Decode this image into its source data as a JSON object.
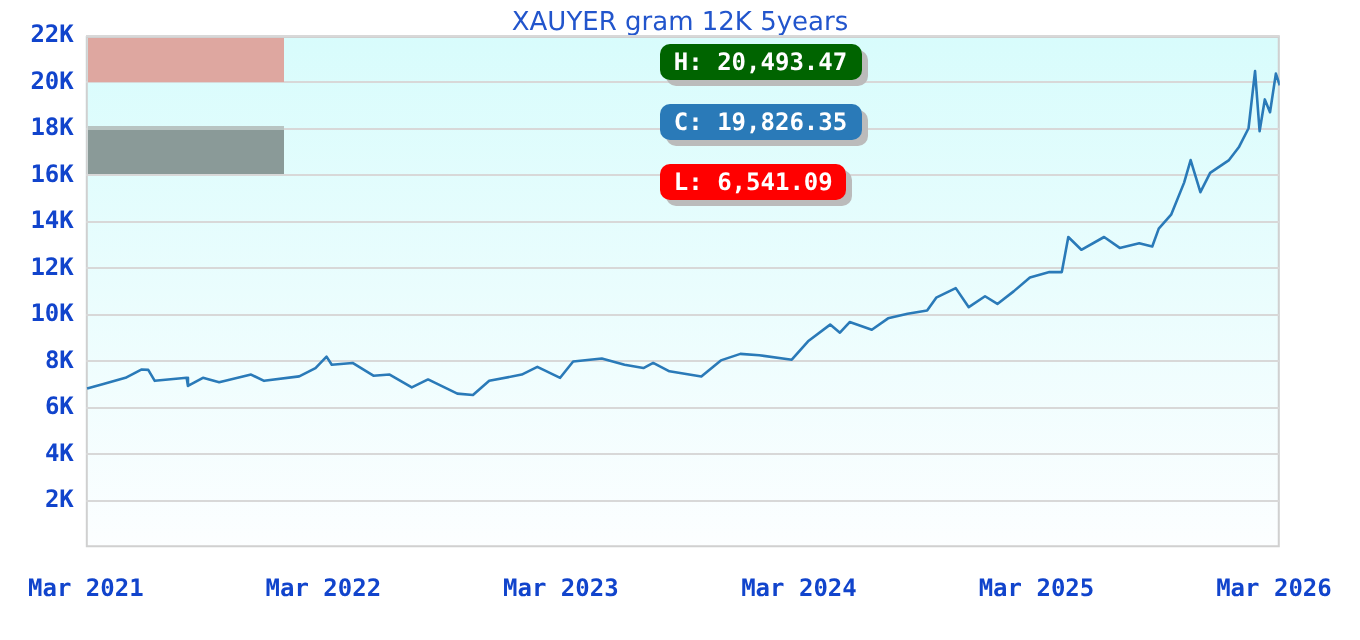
{
  "chart_data": {
    "type": "line",
    "title": "XAUYER gram 12K 5years",
    "x": [
      "2021-03-03",
      "2021-03-28",
      "2021-05-01",
      "2021-05-26",
      "2021-06-05",
      "2021-06-15",
      "2021-08-03",
      "2021-08-05",
      "2021-08-28",
      "2021-09-22",
      "2021-11-10",
      "2021-11-30",
      "2022-01-23",
      "2022-02-17",
      "2022-03-06",
      "2022-03-14",
      "2022-04-15",
      "2022-05-17",
      "2022-06-11",
      "2022-07-15",
      "2022-08-09",
      "2022-09-23",
      "2022-10-17",
      "2022-11-11",
      "2022-12-31",
      "2023-01-24",
      "2023-02-28",
      "2023-03-20",
      "2023-05-03",
      "2023-06-07",
      "2023-07-06",
      "2023-07-21",
      "2023-08-15",
      "2023-10-03",
      "2023-11-02",
      "2023-12-02",
      "2023-12-31",
      "2024-02-19",
      "2024-03-15",
      "2024-04-18",
      "2024-05-03",
      "2024-05-18",
      "2024-06-21",
      "2024-07-16",
      "2024-08-15",
      "2024-09-14",
      "2024-09-28",
      "2024-10-28",
      "2024-11-17",
      "2024-12-12",
      "2024-12-31",
      "2025-01-25",
      "2025-02-19",
      "2025-03-21",
      "2025-04-09",
      "2025-04-19",
      "2025-05-09",
      "2025-06-13",
      "2025-07-07",
      "2025-08-06",
      "2025-08-26",
      "2025-09-05",
      "2025-09-24",
      "2025-10-14",
      "2025-10-24",
      "2025-11-08",
      "2025-11-23",
      "2025-12-22",
      "2026-01-06",
      "2026-01-21",
      "2026-01-31",
      "2026-02-07",
      "2026-02-15",
      "2026-02-23",
      "2026-03-04",
      "2026-03-10"
    ],
    "series": [
      {
        "color": "#2a7ab8",
        "values": [
          6830,
          7020,
          7290,
          7650,
          7630,
          7160,
          7290,
          6940,
          7290,
          7100,
          7430,
          7160,
          7350,
          7710,
          8200,
          7850,
          7930,
          7380,
          7430,
          6880,
          7220,
          6610,
          6550,
          7160,
          7430,
          7760,
          7290,
          7990,
          8120,
          7850,
          7710,
          7930,
          7570,
          7350,
          8040,
          8320,
          8260,
          8070,
          8860,
          9580,
          9230,
          9690,
          9360,
          9850,
          10050,
          10190,
          10740,
          11150,
          10330,
          10800,
          10470,
          11010,
          11610,
          11840,
          11840,
          13350,
          12800,
          13350,
          12880,
          13080,
          12940,
          13710,
          14310,
          15690,
          16660,
          15280,
          16110,
          16660,
          17210,
          18030,
          20490,
          17900,
          19270,
          18720,
          20380,
          19880
        ]
      }
    ],
    "xlim": [
      "2021-03-01",
      "2026-03-10"
    ],
    "xticks": [
      {
        "value": "2021-03-01",
        "label": "Mar 2021"
      },
      {
        "value": "2022-03-01",
        "label": "Mar 2022"
      },
      {
        "value": "2023-03-01",
        "label": "Mar 2023"
      },
      {
        "value": "2024-03-01",
        "label": "Mar 2024"
      },
      {
        "value": "2025-03-01",
        "label": "Mar 2025"
      },
      {
        "value": "2026-03-01",
        "label": "Mar 2026"
      }
    ],
    "ylim": [
      0,
      22000
    ],
    "yticks": [
      {
        "value": 2000,
        "label": "2K"
      },
      {
        "value": 4000,
        "label": "4K"
      },
      {
        "value": 6000,
        "label": "6K"
      },
      {
        "value": 8000,
        "label": "8K"
      },
      {
        "value": 10000,
        "label": "10K"
      },
      {
        "value": 12000,
        "label": "12K"
      },
      {
        "value": 14000,
        "label": "14K"
      },
      {
        "value": 16000,
        "label": "16K"
      },
      {
        "value": 18000,
        "label": "18K"
      },
      {
        "value": 20000,
        "label": "20K"
      },
      {
        "value": 22000,
        "label": "22K"
      }
    ],
    "grid": "y",
    "legend": false,
    "marker": "none",
    "line_style": "solid",
    "annotations": [
      "H: 20,493.47",
      "C: 19,826.35",
      "L: 6,541.09"
    ]
  }
}
